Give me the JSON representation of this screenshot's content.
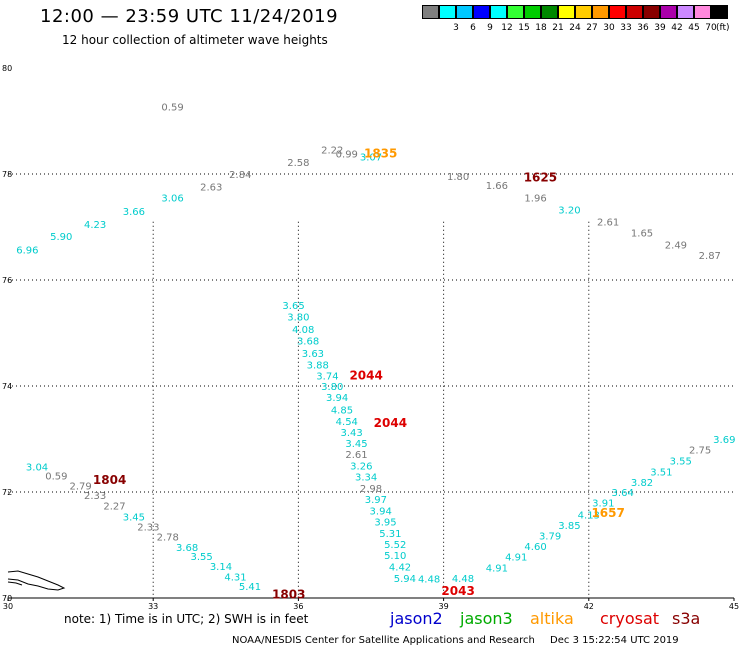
{
  "header": {
    "title": "12:00 — 23:59 UTC 11/24/2019",
    "subtitle": "12 hour collection of altimeter wave heights"
  },
  "color_scale": {
    "unit": "(ft)",
    "bins": [
      {
        "label": "",
        "color": "#7f7f7f"
      },
      {
        "label": "3",
        "color": "#00ffff"
      },
      {
        "label": "6",
        "color": "#00c8ff"
      },
      {
        "label": "9",
        "color": "#0000ff"
      },
      {
        "label": "12",
        "color": "#00ffff"
      },
      {
        "label": "15",
        "color": "#33ff33"
      },
      {
        "label": "18",
        "color": "#00cc00"
      },
      {
        "label": "21",
        "color": "#008800"
      },
      {
        "label": "24",
        "color": "#ffff00"
      },
      {
        "label": "27",
        "color": "#ffcc00"
      },
      {
        "label": "30",
        "color": "#ff9900"
      },
      {
        "label": "33",
        "color": "#ff0000"
      },
      {
        "label": "36",
        "color": "#cc0000"
      },
      {
        "label": "39",
        "color": "#880000"
      },
      {
        "label": "42",
        "color": "#aa00aa"
      },
      {
        "label": "45",
        "color": "#cc88ff"
      },
      {
        "label": "70",
        "color": "#ff88dd"
      },
      {
        "label": "",
        "color": "#000000"
      }
    ]
  },
  "axes": {
    "lon_ticks": [
      "30",
      "33",
      "36",
      "39",
      "42",
      "45"
    ],
    "lat_ticks": [
      "70",
      "72",
      "74",
      "76",
      "78",
      "80"
    ]
  },
  "colors": {
    "gray": "#777777",
    "cyan": "#00cccc",
    "red": "#dd0000",
    "darkred": "#880000",
    "orange": "#ff9900"
  },
  "map_data": {
    "track_labels": [
      {
        "text": "1835",
        "lon": 37.7,
        "lat": 78.39,
        "color": "orange"
      },
      {
        "text": "1625",
        "lon": 41.0,
        "lat": 77.93,
        "color": "darkred"
      },
      {
        "text": "2044",
        "lon": 37.4,
        "lat": 74.2,
        "color": "red"
      },
      {
        "text": "2044",
        "lon": 37.9,
        "lat": 73.3,
        "color": "red"
      },
      {
        "text": "1804",
        "lon": 32.1,
        "lat": 72.23,
        "color": "darkred"
      },
      {
        "text": "1803",
        "lon": 35.8,
        "lat": 70.07,
        "color": "darkred"
      },
      {
        "text": "2043",
        "lon": 39.3,
        "lat": 70.13,
        "color": "red"
      },
      {
        "text": "1657",
        "lon": 42.4,
        "lat": 71.6,
        "color": "orange"
      }
    ],
    "points": [
      {
        "v": "0.59",
        "lon": 33.4,
        "lat": 79.27,
        "c": "gray"
      },
      {
        "v": "2.22",
        "lon": 36.7,
        "lat": 78.46,
        "c": "gray"
      },
      {
        "v": "0.99",
        "lon": 37.0,
        "lat": 78.39,
        "c": "gray"
      },
      {
        "v": "3.07",
        "lon": 37.5,
        "lat": 78.33,
        "c": "cyan"
      },
      {
        "v": "2.58",
        "lon": 36.0,
        "lat": 78.23,
        "c": "gray"
      },
      {
        "v": "2.84",
        "lon": 34.8,
        "lat": 78.0,
        "c": "gray"
      },
      {
        "v": "2.63",
        "lon": 34.2,
        "lat": 77.76,
        "c": "gray"
      },
      {
        "v": "3.06",
        "lon": 33.4,
        "lat": 77.56,
        "c": "cyan"
      },
      {
        "v": "3.66",
        "lon": 32.6,
        "lat": 77.3,
        "c": "cyan"
      },
      {
        "v": "4.23",
        "lon": 31.8,
        "lat": 77.06,
        "c": "cyan"
      },
      {
        "v": "5.90",
        "lon": 31.1,
        "lat": 76.83,
        "c": "cyan"
      },
      {
        "v": "6.96",
        "lon": 30.4,
        "lat": 76.58,
        "c": "cyan"
      },
      {
        "v": "1.80",
        "lon": 39.3,
        "lat": 77.96,
        "c": "gray"
      },
      {
        "v": "1.66",
        "lon": 40.1,
        "lat": 77.79,
        "c": "gray"
      },
      {
        "v": "1.96",
        "lon": 40.9,
        "lat": 77.56,
        "c": "gray"
      },
      {
        "v": "3.20",
        "lon": 41.6,
        "lat": 77.33,
        "c": "cyan"
      },
      {
        "v": "2.61",
        "lon": 42.4,
        "lat": 77.1,
        "c": "gray"
      },
      {
        "v": "1.65",
        "lon": 43.1,
        "lat": 76.9,
        "c": "gray"
      },
      {
        "v": "2.49",
        "lon": 43.8,
        "lat": 76.67,
        "c": "gray"
      },
      {
        "v": "2.87",
        "lon": 44.5,
        "lat": 76.47,
        "c": "gray"
      },
      {
        "v": "3.65",
        "lon": 35.9,
        "lat": 75.53,
        "c": "cyan"
      },
      {
        "v": "3.80",
        "lon": 36.0,
        "lat": 75.31,
        "c": "cyan"
      },
      {
        "v": "4.08",
        "lon": 36.1,
        "lat": 75.08,
        "c": "cyan"
      },
      {
        "v": "3.68",
        "lon": 36.2,
        "lat": 74.86,
        "c": "cyan"
      },
      {
        "v": "3.63",
        "lon": 36.3,
        "lat": 74.62,
        "c": "cyan"
      },
      {
        "v": "3.88",
        "lon": 36.4,
        "lat": 74.41,
        "c": "cyan"
      },
      {
        "v": "3.74",
        "lon": 36.6,
        "lat": 74.2,
        "c": "cyan"
      },
      {
        "v": "3.80",
        "lon": 36.7,
        "lat": 74.0,
        "c": "cyan"
      },
      {
        "v": "3.94",
        "lon": 36.8,
        "lat": 73.79,
        "c": "cyan"
      },
      {
        "v": "4.85",
        "lon": 36.9,
        "lat": 73.56,
        "c": "cyan"
      },
      {
        "v": "4.54",
        "lon": 37.0,
        "lat": 73.34,
        "c": "cyan"
      },
      {
        "v": "3.43",
        "lon": 37.1,
        "lat": 73.13,
        "c": "cyan"
      },
      {
        "v": "3.45",
        "lon": 37.2,
        "lat": 72.92,
        "c": "cyan"
      },
      {
        "v": "2.61",
        "lon": 37.2,
        "lat": 72.72,
        "c": "gray"
      },
      {
        "v": "3.26",
        "lon": 37.3,
        "lat": 72.5,
        "c": "cyan"
      },
      {
        "v": "3.34",
        "lon": 37.4,
        "lat": 72.29,
        "c": "cyan"
      },
      {
        "v": "2.98",
        "lon": 37.5,
        "lat": 72.08,
        "c": "gray"
      },
      {
        "v": "3.97",
        "lon": 37.6,
        "lat": 71.87,
        "c": "cyan"
      },
      {
        "v": "3.94",
        "lon": 37.7,
        "lat": 71.65,
        "c": "cyan"
      },
      {
        "v": "3.95",
        "lon": 37.8,
        "lat": 71.44,
        "c": "cyan"
      },
      {
        "v": "5.31",
        "lon": 37.9,
        "lat": 71.23,
        "c": "cyan"
      },
      {
        "v": "5.52",
        "lon": 38.0,
        "lat": 71.02,
        "c": "cyan"
      },
      {
        "v": "5.10",
        "lon": 38.0,
        "lat": 70.81,
        "c": "cyan"
      },
      {
        "v": "4.42",
        "lon": 38.1,
        "lat": 70.59,
        "c": "cyan"
      },
      {
        "v": "5.94",
        "lon": 38.2,
        "lat": 70.38,
        "c": "cyan"
      },
      {
        "v": "3.04",
        "lon": 30.6,
        "lat": 72.48,
        "c": "cyan"
      },
      {
        "v": "0.59",
        "lon": 31.0,
        "lat": 72.31,
        "c": "gray"
      },
      {
        "v": "2.79",
        "lon": 31.5,
        "lat": 72.12,
        "c": "gray"
      },
      {
        "v": "2.33",
        "lon": 31.8,
        "lat": 71.94,
        "c": "gray"
      },
      {
        "v": "2.27",
        "lon": 32.2,
        "lat": 71.75,
        "c": "gray"
      },
      {
        "v": "3.45",
        "lon": 32.6,
        "lat": 71.54,
        "c": "cyan"
      },
      {
        "v": "2.33",
        "lon": 32.9,
        "lat": 71.35,
        "c": "gray"
      },
      {
        "v": "2.78",
        "lon": 33.3,
        "lat": 71.16,
        "c": "gray"
      },
      {
        "v": "3.68",
        "lon": 33.7,
        "lat": 70.96,
        "c": "cyan"
      },
      {
        "v": "3.55",
        "lon": 34.0,
        "lat": 70.79,
        "c": "cyan"
      },
      {
        "v": "3.14",
        "lon": 34.4,
        "lat": 70.6,
        "c": "cyan"
      },
      {
        "v": "4.31",
        "lon": 34.7,
        "lat": 70.41,
        "c": "cyan"
      },
      {
        "v": "5.41",
        "lon": 35.0,
        "lat": 70.23,
        "c": "cyan"
      },
      {
        "v": "4.48",
        "lon": 38.7,
        "lat": 70.37,
        "c": "cyan"
      },
      {
        "v": "4.48",
        "lon": 39.4,
        "lat": 70.38,
        "c": "cyan"
      },
      {
        "v": "4.91",
        "lon": 40.1,
        "lat": 70.58,
        "c": "cyan"
      },
      {
        "v": "4.91",
        "lon": 40.5,
        "lat": 70.78,
        "c": "cyan"
      },
      {
        "v": "4.60",
        "lon": 40.9,
        "lat": 70.98,
        "c": "cyan"
      },
      {
        "v": "3.79",
        "lon": 41.2,
        "lat": 71.18,
        "c": "cyan"
      },
      {
        "v": "3.85",
        "lon": 41.6,
        "lat": 71.38,
        "c": "cyan"
      },
      {
        "v": "4.13",
        "lon": 42.0,
        "lat": 71.58,
        "c": "cyan"
      },
      {
        "v": "3.91",
        "lon": 42.3,
        "lat": 71.8,
        "c": "cyan"
      },
      {
        "v": "3.64",
        "lon": 42.7,
        "lat": 72.0,
        "c": "cyan"
      },
      {
        "v": "3.82",
        "lon": 43.1,
        "lat": 72.19,
        "c": "cyan"
      },
      {
        "v": "3.51",
        "lon": 43.5,
        "lat": 72.39,
        "c": "cyan"
      },
      {
        "v": "3.55",
        "lon": 43.9,
        "lat": 72.59,
        "c": "cyan"
      },
      {
        "v": "2.75",
        "lon": 44.3,
        "lat": 72.8,
        "c": "gray"
      },
      {
        "v": "3.69",
        "lon": 44.8,
        "lat": 73.0,
        "c": "cyan"
      }
    ]
  },
  "legend": {
    "note": "note: 1) Time is in UTC; 2) SWH is in feet",
    "satellites": [
      {
        "name": "jason2",
        "color": "#0000cc"
      },
      {
        "name": "jason3",
        "color": "#00aa00"
      },
      {
        "name": "altika",
        "color": "#ff9900"
      },
      {
        "name": "cryosat",
        "color": "#dd0000"
      },
      {
        "name": "s3a",
        "color": "#880000"
      }
    ]
  },
  "footer": {
    "credit": "NOAA/NESDIS Center for Satellite Applications and Research",
    "timestamp": "Dec  3 15:22:54 UTC 2019"
  }
}
